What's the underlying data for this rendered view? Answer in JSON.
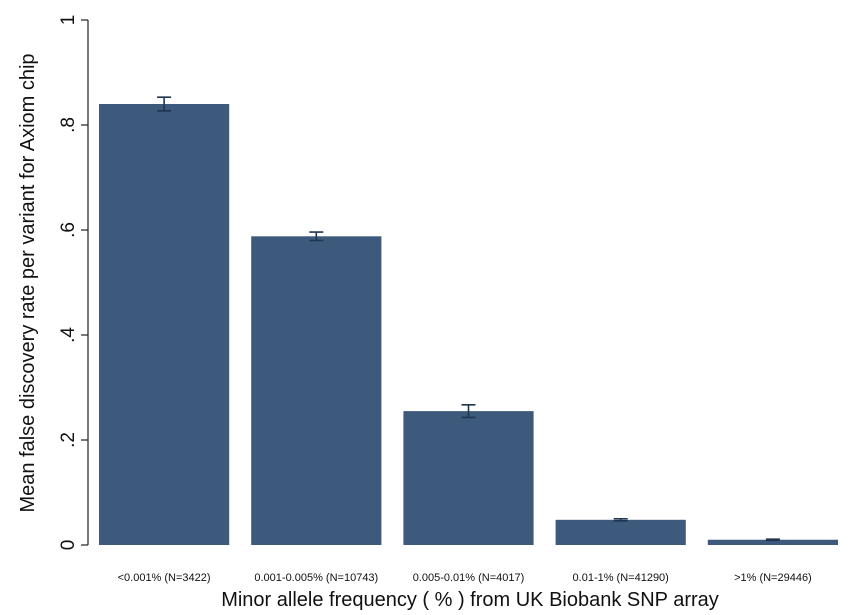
{
  "chart_data": {
    "type": "bar",
    "categories": [
      "<0.001% (N=3422)",
      "0.001-0.005% (N=10743)",
      "0.005-0.01% (N=4017)",
      "0.01-1% (N=41290)",
      ">1% (N=29446)"
    ],
    "values": [
      0.84,
      0.588,
      0.255,
      0.048,
      0.01
    ],
    "error_low": [
      0.827,
      0.58,
      0.243,
      0.046,
      0.009
    ],
    "error_high": [
      0.853,
      0.596,
      0.267,
      0.05,
      0.011
    ],
    "xlabel": "Minor allele frequency ( % ) from UK Biobank SNP array",
    "ylabel": "Mean false discovery rate per variant for Axiom chip",
    "ylim": [
      0,
      1
    ],
    "yticks": [
      0,
      0.2,
      0.4,
      0.6,
      0.8,
      1
    ],
    "ytick_labels": [
      "0",
      ".2",
      ".4",
      ".6",
      ".8",
      "1"
    ],
    "grid": false,
    "bar_color": "#3d5a7c",
    "error_color": "#1f3550"
  }
}
